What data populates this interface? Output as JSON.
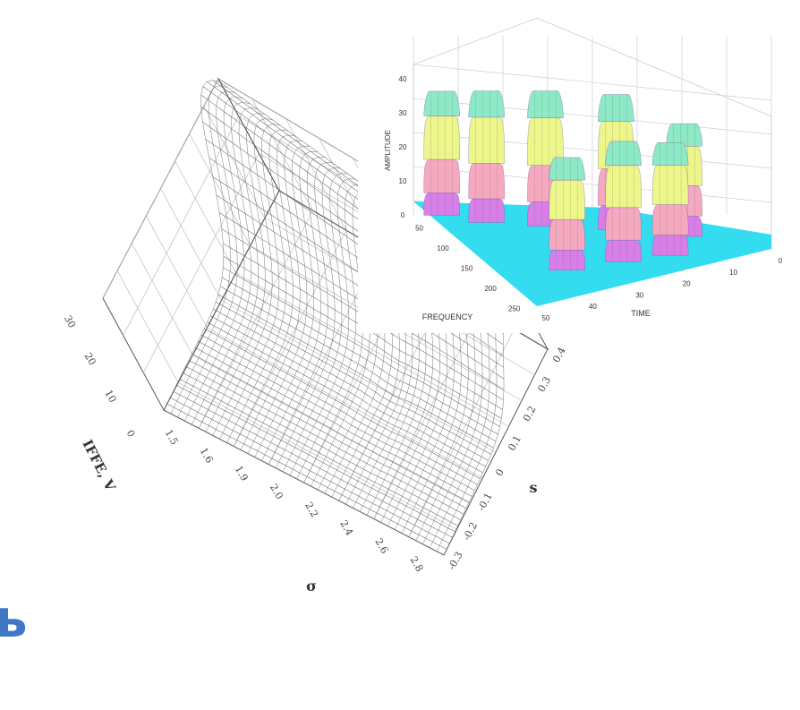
{
  "page": {
    "fragment_text": "ь",
    "accent_color": "#3f78c7"
  },
  "chart_data": [
    {
      "type": "surface-3d-wireframe",
      "zlabel": "IFFE, V",
      "xlabel": "σ",
      "ylabel": "s",
      "z_ticks": [
        "0",
        "10",
        "20",
        "30"
      ],
      "x_ticks": [
        "1.5",
        "1.6",
        "1.9",
        "2.0",
        "2.2",
        "2.4",
        "2.6",
        "2.8"
      ],
      "y_ticks": [
        "-0.3",
        "-0.2",
        "-0.1",
        "0",
        "0.1",
        "0.2",
        "0.3",
        "0.4"
      ],
      "grid": true,
      "surface_shape": "ridge along the back-left edge falling to a flat plain at front-right"
    },
    {
      "type": "surface-3d",
      "zlabel": "AMPLITUDE",
      "xlabel": "FREQUENCY",
      "ylabel": "TIME",
      "z_ticks": [
        "0",
        "10",
        "20",
        "30",
        "40"
      ],
      "freq_ticks": [
        "50",
        "100",
        "150",
        "200",
        "250"
      ],
      "time_ticks": [
        "50",
        "40",
        "30",
        "20",
        "10",
        "0"
      ],
      "grid": true,
      "colormap": [
        "#33dcef",
        "#d77fe7",
        "#f5a9bf",
        "#ecf68a",
        "#8ee9c6"
      ],
      "pulse_peaks": [
        {
          "time": 48,
          "frequency": 40,
          "amplitude": 33
        },
        {
          "time": 42,
          "frequency": 75,
          "amplitude": 35
        },
        {
          "time": 33,
          "frequency": 110,
          "amplitude": 36
        },
        {
          "time": 22,
          "frequency": 150,
          "amplitude": 36
        },
        {
          "time": 12,
          "frequency": 195,
          "amplitude": 30
        },
        {
          "time": 38,
          "frequency": 205,
          "amplitude": 30
        },
        {
          "time": 27,
          "frequency": 215,
          "amplitude": 32
        },
        {
          "time": 18,
          "frequency": 225,
          "amplitude": 30
        }
      ]
    }
  ]
}
